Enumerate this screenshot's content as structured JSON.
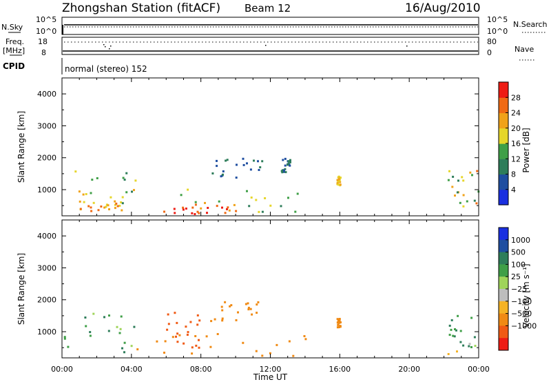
{
  "header": {
    "station": "Zhongshan Station (fitACF)",
    "beam": "Beam 12",
    "date": "16/Aug/2010"
  },
  "top_panels": {
    "nsky_label": "N.Sky",
    "nsky_top_tick": "10^5",
    "nsky_bottom_tick": "10^0",
    "nsearch_label": "N.Search",
    "nsearch_top_tick": "10^5",
    "nsearch_bottom_tick": "10^0",
    "freq_label": "Freq.",
    "freq_unit": "[MHz]",
    "freq_top_tick": "18",
    "freq_bottom_tick": "8",
    "nave_label": "Nave",
    "nave_top_tick": "80",
    "nave_bottom_tick": "0",
    "cpid_label": "CPID",
    "cpid_value": "normal (stereo) 152"
  },
  "colors": {
    "power": [
      "#1a2fe0",
      "#1f4ea0",
      "#2e7d5a",
      "#3f9f47",
      "#e6d62a",
      "#f0a219",
      "#f06a14",
      "#ee1c14"
    ],
    "velocity": [
      "#ee1c14",
      "#f05a14",
      "#f08a14",
      "#f5b325",
      "#bdbdbd",
      "#9fd45a",
      "#3f9f47",
      "#2e7d5a",
      "#1f4ea0",
      "#1a2fe0"
    ]
  },
  "chart_data": [
    {
      "type": "heatmap",
      "title": "",
      "xlabel": "",
      "ylabel": "Slant Range [km]",
      "xlim": [
        0,
        24
      ],
      "ylim": [
        180,
        4500
      ],
      "x_ticks": [
        "00:00",
        "04:00",
        "08:00",
        "12:00",
        "16:00",
        "20:00",
        "00:00"
      ],
      "y_ticks": [
        "1000",
        "2000",
        "3000",
        "4000"
      ],
      "colorbar_label": "Power [dB]",
      "colorbar_ticks": [
        "4",
        "8",
        "12",
        "16",
        "20",
        "24",
        "28"
      ],
      "colorbar_range": [
        0,
        32
      ],
      "echo_regions": [
        {
          "t": [
            0.0,
            4.2
          ],
          "r": [
            300,
            1700
          ],
          "value_range": [
            8,
            24
          ]
        },
        {
          "t": [
            1.0,
            3.5
          ],
          "r": [
            250,
            600
          ],
          "value_range": [
            16,
            28
          ]
        },
        {
          "t": [
            5.8,
            11.0
          ],
          "r": [
            200,
            500
          ],
          "value_range": [
            24,
            31
          ]
        },
        {
          "t": [
            4.5,
            13.6
          ],
          "r": [
            250,
            1000
          ],
          "value_range": [
            8,
            24
          ]
        },
        {
          "t": [
            8.5,
            11.5
          ],
          "r": [
            1300,
            2000
          ],
          "value_range": [
            4,
            10
          ]
        },
        {
          "t": [
            12.6,
            13.1
          ],
          "r": [
            1500,
            2000
          ],
          "value_range": [
            4,
            10
          ]
        },
        {
          "t": [
            15.8,
            16.0
          ],
          "r": [
            1100,
            1400
          ],
          "value_range": [
            16,
            24
          ]
        },
        {
          "t": [
            22.2,
            24.0
          ],
          "r": [
            250,
            1600
          ],
          "value_range": [
            8,
            26
          ]
        }
      ]
    },
    {
      "type": "heatmap",
      "title": "",
      "xlabel": "Time UT",
      "ylabel": "Slant Range [km]",
      "xlim": [
        0,
        24
      ],
      "ylim": [
        180,
        4500
      ],
      "x_ticks": [
        "00:00",
        "04:00",
        "08:00",
        "12:00",
        "16:00",
        "20:00",
        "00:00"
      ],
      "y_ticks": [
        "1000",
        "2000",
        "3000",
        "4000"
      ],
      "colorbar_label": "Velocity [m s⁻¹]",
      "colorbar_ticks": [
        "1000",
        "500",
        "100",
        "25",
        "−25",
        "−100",
        "−500",
        "−1000"
      ],
      "colorbar_range": [
        -1000,
        1000
      ],
      "echo_regions": [
        {
          "t": [
            0.0,
            4.2
          ],
          "r": [
            300,
            1700
          ],
          "value_range": [
            25,
            1000
          ]
        },
        {
          "t": [
            4.2,
            14.0
          ],
          "r": [
            200,
            900
          ],
          "value_range": [
            -500,
            -100
          ]
        },
        {
          "t": [
            5.8,
            8.0
          ],
          "r": [
            400,
            1600
          ],
          "value_range": [
            -1000,
            -500
          ]
        },
        {
          "t": [
            8.5,
            11.5
          ],
          "r": [
            1300,
            2000
          ],
          "value_range": [
            -500,
            -100
          ]
        },
        {
          "t": [
            15.8,
            16.0
          ],
          "r": [
            1100,
            1400
          ],
          "value_range": [
            -500,
            -100
          ]
        },
        {
          "t": [
            22.2,
            24.0
          ],
          "r": [
            250,
            1600
          ],
          "value_range": [
            -100,
            1000
          ]
        }
      ]
    }
  ]
}
